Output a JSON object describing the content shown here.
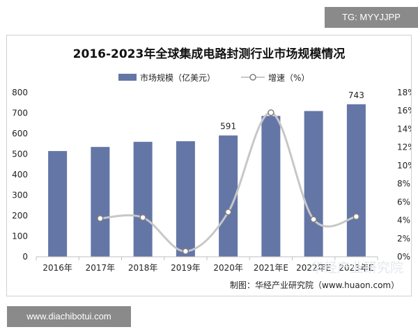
{
  "badges": {
    "top_right": "TG: MYYJJPP",
    "bottom_left": "www.diachibotui.com"
  },
  "watermark": "华经产业研究院",
  "source_note": "制图：华经产业研究院（www.huaon.com）",
  "colors": {
    "bar": "#6476a6",
    "line": "#c7c7c7",
    "marker_stroke": "#7f7f7f",
    "axis_text": "#222222",
    "title": "#111111"
  },
  "chart_data": {
    "type": "bar",
    "title": "2016-2023年全球集成电路封测行业市场规模情况",
    "categories": [
      "2016年",
      "2017年",
      "2018年",
      "2019年",
      "2020年",
      "2021年E",
      "2022年E",
      "2023年E"
    ],
    "series": [
      {
        "name": "市场规模（亿美元）",
        "type": "bar",
        "axis": "left",
        "values": [
          515,
          535,
          560,
          563,
          591,
          686,
          710,
          743
        ],
        "data_labels": [
          "",
          "",
          "",
          "",
          "591",
          "",
          "",
          "743"
        ]
      },
      {
        "name": "增速（%）",
        "type": "line",
        "axis": "right",
        "smooth": true,
        "marker": "hollow-circle",
        "values": [
          null,
          4.2,
          4.3,
          0.6,
          4.9,
          15.8,
          4.1,
          4.4
        ]
      }
    ],
    "y_left": {
      "ylim": [
        0,
        800
      ],
      "ticks": [
        "0",
        "100",
        "200",
        "300",
        "400",
        "500",
        "600",
        "700",
        "800"
      ]
    },
    "y_right": {
      "ylim": [
        0,
        18
      ],
      "ticks": [
        "0%",
        "2%",
        "4%",
        "6%",
        "8%",
        "10%",
        "12%",
        "14%",
        "16%",
        "18%"
      ]
    },
    "legend_position": "top-center",
    "grid": false
  }
}
